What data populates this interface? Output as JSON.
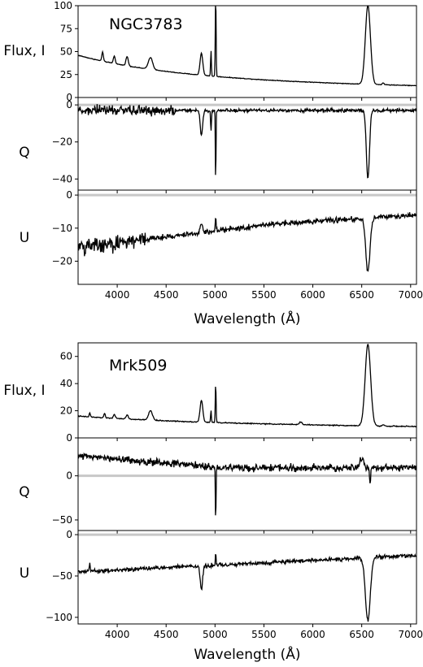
{
  "chart_data": [
    {
      "type": "line",
      "object_label": "NGC3783",
      "xlabel": "Wavelength (Å)",
      "xlim": [
        3600,
        7060
      ],
      "xticks": [
        4000,
        4500,
        5000,
        5500,
        6000,
        6500,
        7000
      ],
      "panels": [
        {
          "ylabel": "Flux, I",
          "ylim": [
            0,
            100
          ],
          "yticks": [
            0,
            25,
            50,
            75,
            100
          ],
          "zero_line": false,
          "lines": [
            {
              "wl": 3850,
              "w": 8,
              "amp": 10
            },
            {
              "wl": 3970,
              "w": 10,
              "amp": 8
            },
            {
              "wl": 4101,
              "w": 12,
              "amp": 10
            },
            {
              "wl": 4340,
              "w": 22,
              "amp": 13
            },
            {
              "wl": 4861,
              "w": 14,
              "amp": 24
            },
            {
              "wl": 4959,
              "w": 4,
              "amp": 28
            },
            {
              "wl": 5007,
              "w": 4,
              "amp": 95
            },
            {
              "wl": 6563,
              "w": 26,
              "amp": 86
            },
            {
              "wl": 6720,
              "w": 10,
              "amp": 2
            }
          ]
        },
        {
          "ylabel": "Q",
          "ylim": [
            -46,
            4
          ],
          "yticks": [
            0,
            -20,
            -40
          ],
          "zero_line": true,
          "lines": [
            {
              "wl": 4861,
              "w": 12,
              "amp": -14
            },
            {
              "wl": 4959,
              "w": 4,
              "amp": -12
            },
            {
              "wl": 5007,
              "w": 3,
              "amp": -43
            },
            {
              "wl": 6563,
              "w": 16,
              "amp": -37
            }
          ]
        },
        {
          "ylabel": "U",
          "ylim": [
            -27,
            1.5
          ],
          "yticks": [
            0,
            -10,
            -20
          ],
          "zero_line": true,
          "lines": [
            {
              "wl": 4861,
              "w": 12,
              "amp": 3
            },
            {
              "wl": 5007,
              "w": 4,
              "amp": 4
            },
            {
              "wl": 6563,
              "w": 22,
              "amp": -16
            }
          ]
        }
      ]
    },
    {
      "type": "line",
      "object_label": "Mrk509",
      "xlabel": "Wavelength (Å)",
      "xlim": [
        3600,
        7060
      ],
      "xticks": [
        4000,
        4500,
        5000,
        5500,
        6000,
        6500,
        7000
      ],
      "panels": [
        {
          "ylabel": "Flux, I",
          "ylim": [
            0,
            70
          ],
          "yticks": [
            0,
            20,
            40,
            60
          ],
          "zero_line": false,
          "lines": [
            {
              "wl": 3720,
              "w": 6,
              "amp": 3
            },
            {
              "wl": 3870,
              "w": 8,
              "amp": 3
            },
            {
              "wl": 3970,
              "w": 10,
              "amp": 3
            },
            {
              "wl": 4101,
              "w": 12,
              "amp": 3
            },
            {
              "wl": 4340,
              "w": 20,
              "amp": 7
            },
            {
              "wl": 4861,
              "w": 14,
              "amp": 16
            },
            {
              "wl": 4959,
              "w": 4,
              "amp": 9
            },
            {
              "wl": 5007,
              "w": 4,
              "amp": 30
            },
            {
              "wl": 5876,
              "w": 14,
              "amp": 2
            },
            {
              "wl": 6563,
              "w": 28,
              "amp": 60
            },
            {
              "wl": 6720,
              "w": 10,
              "amp": 1
            }
          ]
        },
        {
          "ylabel": "Q",
          "ylim": [
            -62,
            43
          ],
          "yticks": [
            0,
            -50
          ],
          "zero_line": true,
          "lines": [
            {
              "wl": 5007,
              "w": 3,
              "amp": -74
            },
            {
              "wl": 6500,
              "w": 20,
              "amp": 12
            },
            {
              "wl": 6585,
              "w": 5,
              "amp": -20
            }
          ]
        },
        {
          "ylabel": "U",
          "ylim": [
            -108,
            5
          ],
          "yticks": [
            0,
            -50,
            -100
          ],
          "zero_line": true,
          "lines": [
            {
              "wl": 3720,
              "w": 4,
              "amp": 12
            },
            {
              "wl": 4861,
              "w": 12,
              "amp": -30
            },
            {
              "wl": 5007,
              "w": 4,
              "amp": 15
            },
            {
              "wl": 6563,
              "w": 25,
              "amp": -75
            }
          ]
        }
      ]
    }
  ]
}
